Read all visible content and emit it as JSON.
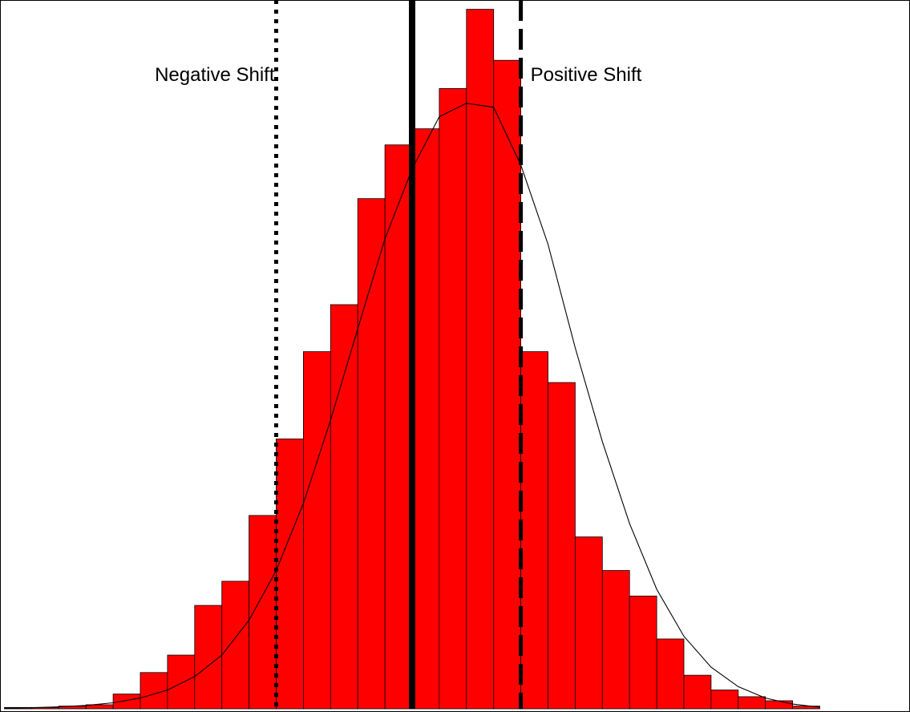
{
  "chart_data": {
    "type": "bar",
    "bin_edges": [
      -15,
      -14,
      -13,
      -12,
      -11,
      -10,
      -9,
      -8,
      -7,
      -6,
      -5,
      -4,
      -3,
      -2,
      -1,
      0,
      1,
      2,
      3,
      4,
      5,
      6,
      7,
      8,
      9,
      10,
      11,
      12,
      13,
      14,
      15,
      16,
      17,
      18,
      19,
      20,
      21,
      22,
      23,
      24,
      25,
      26,
      27,
      28,
      29,
      30,
      31,
      32,
      33,
      34
    ],
    "counts": [
      1,
      1,
      2,
      3,
      11,
      27,
      40,
      77,
      95,
      144,
      201,
      266,
      301,
      380,
      420,
      432,
      462,
      521,
      483,
      266,
      243,
      128,
      103,
      84,
      52,
      25,
      14,
      9,
      6,
      2,
      0,
      0,
      0,
      0,
      0,
      0,
      0,
      0,
      0,
      0,
      0,
      0,
      0,
      0,
      0,
      0,
      0,
      0,
      2
    ],
    "density_curve": {
      "x": [
        -15.0,
        -14.0,
        -13.0,
        -12.0,
        -11.0,
        -10.0,
        -9.0,
        -8.0,
        -7.0,
        -6.0,
        -5.0,
        -4.0,
        -3.0,
        -2.0,
        -1.0,
        0.0,
        1.0,
        2.0,
        3.0,
        4.0,
        5.0,
        6.0,
        7.0,
        8.0,
        9.0,
        10.0,
        11.0,
        12.0,
        13.0,
        14.0,
        15.0
      ],
      "y": [
        0.5,
        0.8,
        1.5,
        2.5,
        4.5,
        8.0,
        14.0,
        24.0,
        40.0,
        66.0,
        103.0,
        153.0,
        215.0,
        283.0,
        350.0,
        402.0,
        441.0,
        451.0,
        448.0,
        405.0,
        346.0,
        269.0,
        199.0,
        138.0,
        89.0,
        54.0,
        31.0,
        16.5,
        8.0,
        3.5,
        1.2
      ]
    },
    "vlines": [
      {
        "label": "Negative Shift",
        "x": -5,
        "style": "dotted"
      },
      {
        "label": "",
        "x": 0,
        "style": "solid"
      },
      {
        "label": "Positive Shift",
        "x": 4,
        "style": "dashed"
      }
    ],
    "xlim": [
      -15,
      34
    ],
    "ylim": [
      0,
      600
    ],
    "bar_color": "#ff0000",
    "bar_edge_color": "#000000",
    "line_color": "#000000",
    "title": "",
    "xlabel": "",
    "ylabel": "",
    "grid": false
  }
}
